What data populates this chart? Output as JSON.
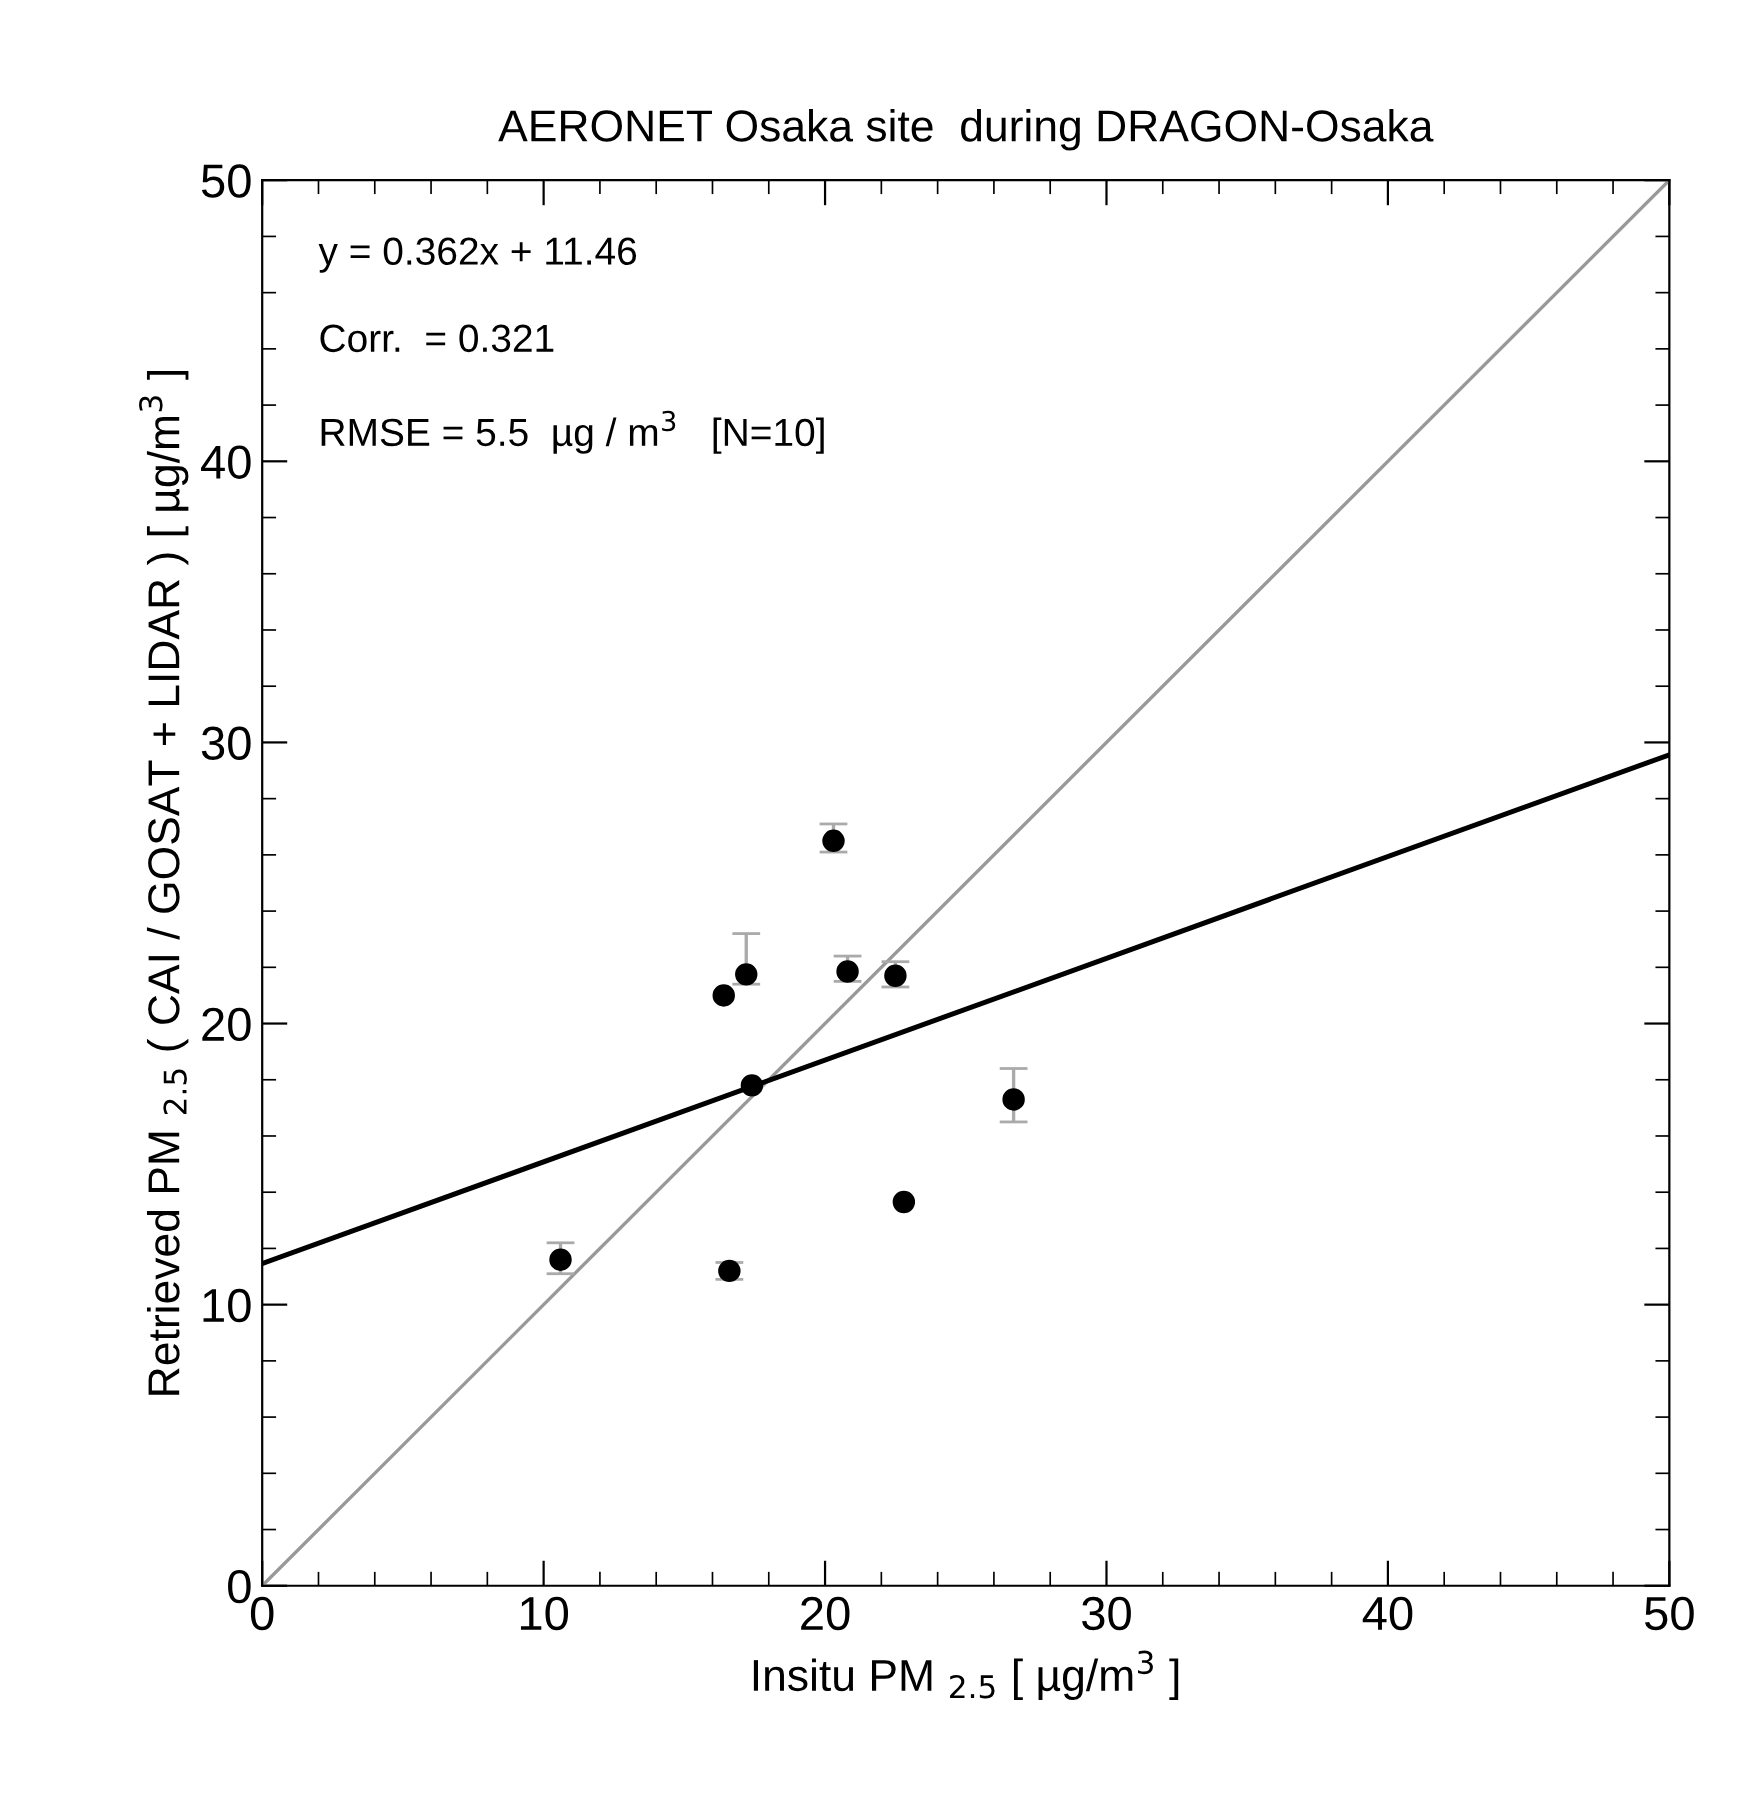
{
  "chart_data": {
    "type": "scatter",
    "title": "AERONET Osaka site  during DRAGON-Osaka",
    "xlabel": "Insitu PM $_{2.5}$ [ µg/m$^{3}$ ]",
    "ylabel": "Retrieved PM $_{2.5}$ ( CAI / GOSAT + LIDAR ) [ µg/m$^{3}$ ]",
    "annotations": [
      "y = 0.362x + 11.46",
      "Corr.  = 0.321",
      "RMSE = 5.5  µg / m$^{3}$   [N=10]"
    ],
    "xlim": [
      0,
      50
    ],
    "ylim": [
      0,
      50
    ],
    "xticks": [
      0,
      10,
      20,
      30,
      40,
      50
    ],
    "yticks": [
      0,
      10,
      20,
      30,
      40,
      50
    ],
    "grid": false,
    "marker": "circle",
    "series": [
      {
        "color": "#000000",
        "x": [
          10.6,
          16.6,
          16.4,
          17.2,
          17.4,
          20.3,
          20.8,
          22.5,
          22.8,
          26.7
        ],
        "values": [
          11.6,
          11.2,
          21.0,
          21.75,
          17.8,
          26.5,
          21.85,
          21.7,
          13.65,
          17.3
        ],
        "errors": [
          [
            11.1,
            12.2
          ],
          [
            10.9,
            11.5
          ],
          null,
          [
            21.4,
            23.2
          ],
          null,
          [
            26.1,
            27.1
          ],
          [
            21.5,
            22.4
          ],
          [
            21.3,
            22.2
          ],
          null,
          [
            16.5,
            18.4
          ]
        ]
      },
      {
        "type": "line",
        "color": "#999999",
        "x": [
          0,
          50
        ],
        "values": [
          0,
          50
        ],
        "marker": "none"
      },
      {
        "type": "line",
        "color": "#000000",
        "x": [
          0,
          50
        ],
        "values": [
          11.46,
          29.56
        ],
        "marker": "none"
      }
    ]
  }
}
